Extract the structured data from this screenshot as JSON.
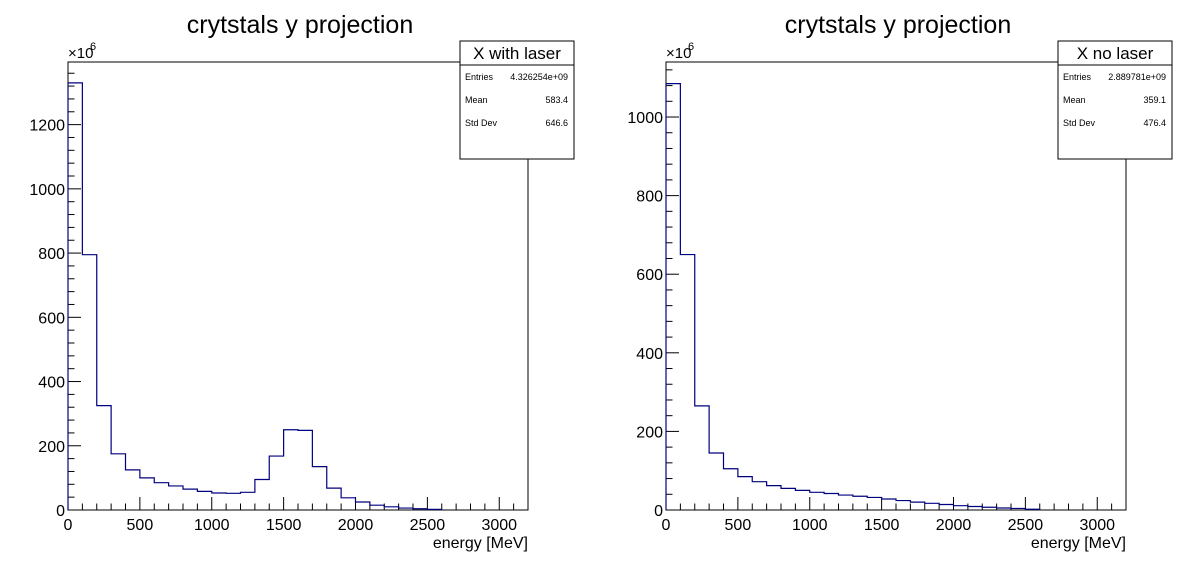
{
  "chart_data": [
    {
      "type": "histogram",
      "title": "crytstals y projection",
      "xlabel": "energy [MeV]",
      "ylabel": "",
      "y_exponent_label": "×10",
      "y_exponent_power": "6",
      "xlim": [
        0,
        3200
      ],
      "ylim": [
        0,
        1395
      ],
      "x_ticks": [
        0,
        500,
        1000,
        1500,
        2000,
        2500,
        3000
      ],
      "y_ticks": [
        0,
        200,
        400,
        600,
        800,
        1000,
        1200
      ],
      "bin_width": 100,
      "bin_edges_start": 0,
      "values": [
        1330,
        795,
        325,
        175,
        125,
        100,
        85,
        75,
        65,
        58,
        53,
        52,
        55,
        95,
        168,
        250,
        248,
        135,
        68,
        38,
        25,
        15,
        10,
        6,
        4,
        2
      ],
      "line_color": "#00007f",
      "stats_box": {
        "name": "X with laser",
        "rows": [
          {
            "label": "Entries",
            "value": "4.326254e+09"
          },
          {
            "label": "Mean",
            "value": "583.4"
          },
          {
            "label": "Std Dev",
            "value": "646.6"
          }
        ]
      }
    },
    {
      "type": "histogram",
      "title": "crytstals y projection",
      "xlabel": "energy [MeV]",
      "ylabel": "",
      "y_exponent_label": "×10",
      "y_exponent_power": "6",
      "xlim": [
        0,
        3200
      ],
      "ylim": [
        0,
        1140
      ],
      "x_ticks": [
        0,
        500,
        1000,
        1500,
        2000,
        2500,
        3000
      ],
      "y_ticks": [
        0,
        200,
        400,
        600,
        800,
        1000
      ],
      "bin_width": 100,
      "bin_edges_start": 0,
      "values": [
        1085,
        650,
        265,
        145,
        105,
        85,
        72,
        62,
        55,
        50,
        45,
        42,
        38,
        35,
        32,
        28,
        24,
        20,
        17,
        14,
        11,
        9,
        7,
        5,
        4,
        2
      ],
      "line_color": "#00007f",
      "stats_box": {
        "name": "X no laser",
        "rows": [
          {
            "label": "Entries",
            "value": "2.889781e+09"
          },
          {
            "label": "Mean",
            "value": "359.1"
          },
          {
            "label": "Std Dev",
            "value": "476.4"
          }
        ]
      }
    }
  ]
}
